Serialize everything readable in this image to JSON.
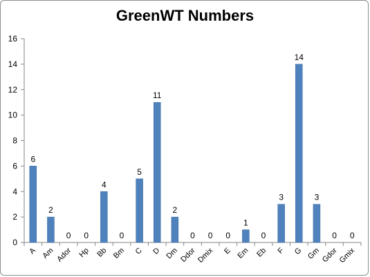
{
  "chart_data": {
    "type": "bar",
    "title": "GreenWT Numbers",
    "xlabel": "",
    "ylabel": "",
    "categories": [
      "A",
      "Am",
      "Ador",
      "Hp",
      "Bb",
      "Bm",
      "C",
      "D",
      "Dm",
      "Ddor",
      "Dmix",
      "E",
      "Em",
      "Eb",
      "F",
      "G",
      "Gm",
      "Gdor",
      "Gmix"
    ],
    "values": [
      6,
      2,
      0,
      0,
      4,
      0,
      5,
      11,
      2,
      0,
      0,
      0,
      1,
      0,
      3,
      14,
      3,
      0,
      0
    ],
    "ylim": [
      0,
      16
    ],
    "yticks": [
      0,
      2,
      4,
      6,
      8,
      10,
      12,
      14,
      16
    ],
    "grid": false,
    "legend": "none",
    "bar_color": "#4f81bd",
    "show_data_labels": true
  }
}
